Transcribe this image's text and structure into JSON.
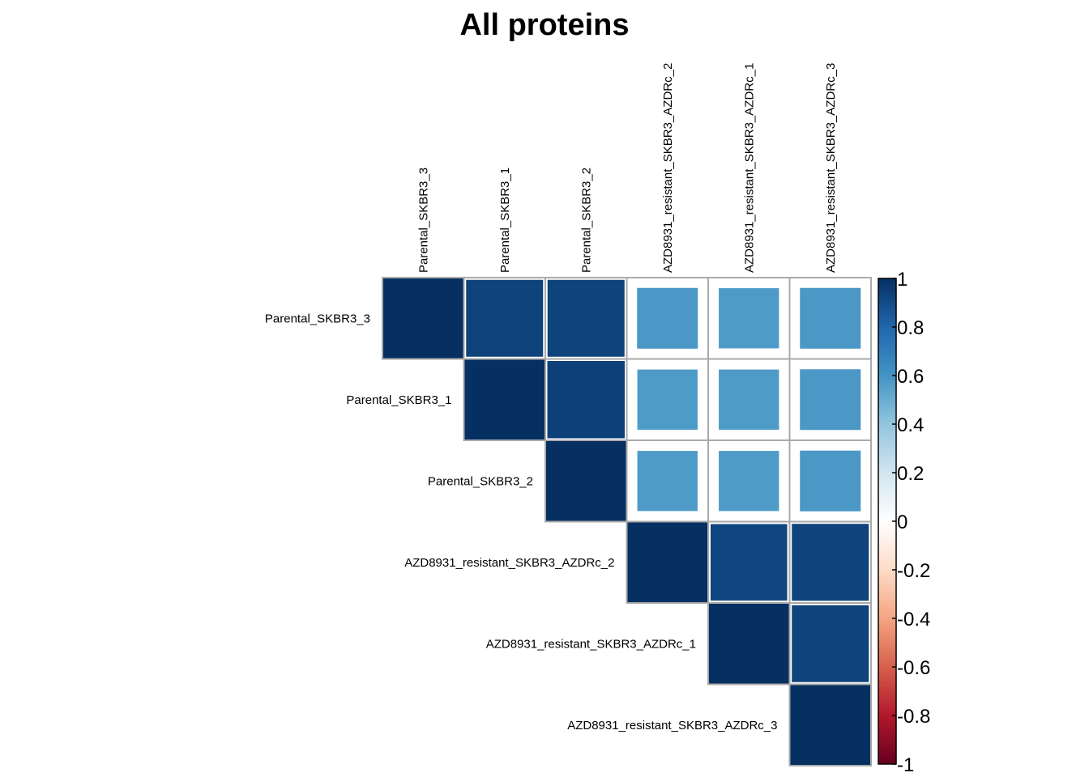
{
  "chart_data": {
    "type": "heatmap",
    "subtype": "correlation-upper-triangle",
    "title": "All proteins",
    "labels": [
      "Parental_SKBR3_3",
      "Parental_SKBR3_1",
      "Parental_SKBR3_2",
      "AZD8931_resistant_SKBR3_AZDRc_2",
      "AZD8931_resistant_SKBR3_AZDRc_1",
      "AZD8931_resistant_SKBR3_AZDRc_3"
    ],
    "matrix": [
      [
        1.0,
        0.93,
        0.93,
        0.58,
        0.57,
        0.58
      ],
      [
        0.93,
        1.0,
        0.94,
        0.57,
        0.57,
        0.58
      ],
      [
        0.93,
        0.94,
        1.0,
        0.57,
        0.57,
        0.58
      ],
      [
        0.58,
        0.57,
        0.57,
        1.0,
        0.92,
        0.93
      ],
      [
        0.57,
        0.57,
        0.57,
        0.92,
        1.0,
        0.93
      ],
      [
        0.58,
        0.58,
        0.58,
        0.93,
        0.93,
        1.0
      ]
    ],
    "colorbar": {
      "range": [
        -1,
        1
      ],
      "ticks": [
        "1",
        "0.8",
        "0.6",
        "0.4",
        "0.2",
        "0",
        "-0.2",
        "-0.4",
        "-0.6",
        "-0.8",
        "-1"
      ],
      "colors": [
        "#67001F",
        "#B2182B",
        "#D6604D",
        "#F4A582",
        "#FDDBC7",
        "#FFFFFF",
        "#D1E5F0",
        "#92C5DE",
        "#4393C3",
        "#2166AC",
        "#053061"
      ],
      "position": "right"
    },
    "grid": true
  }
}
